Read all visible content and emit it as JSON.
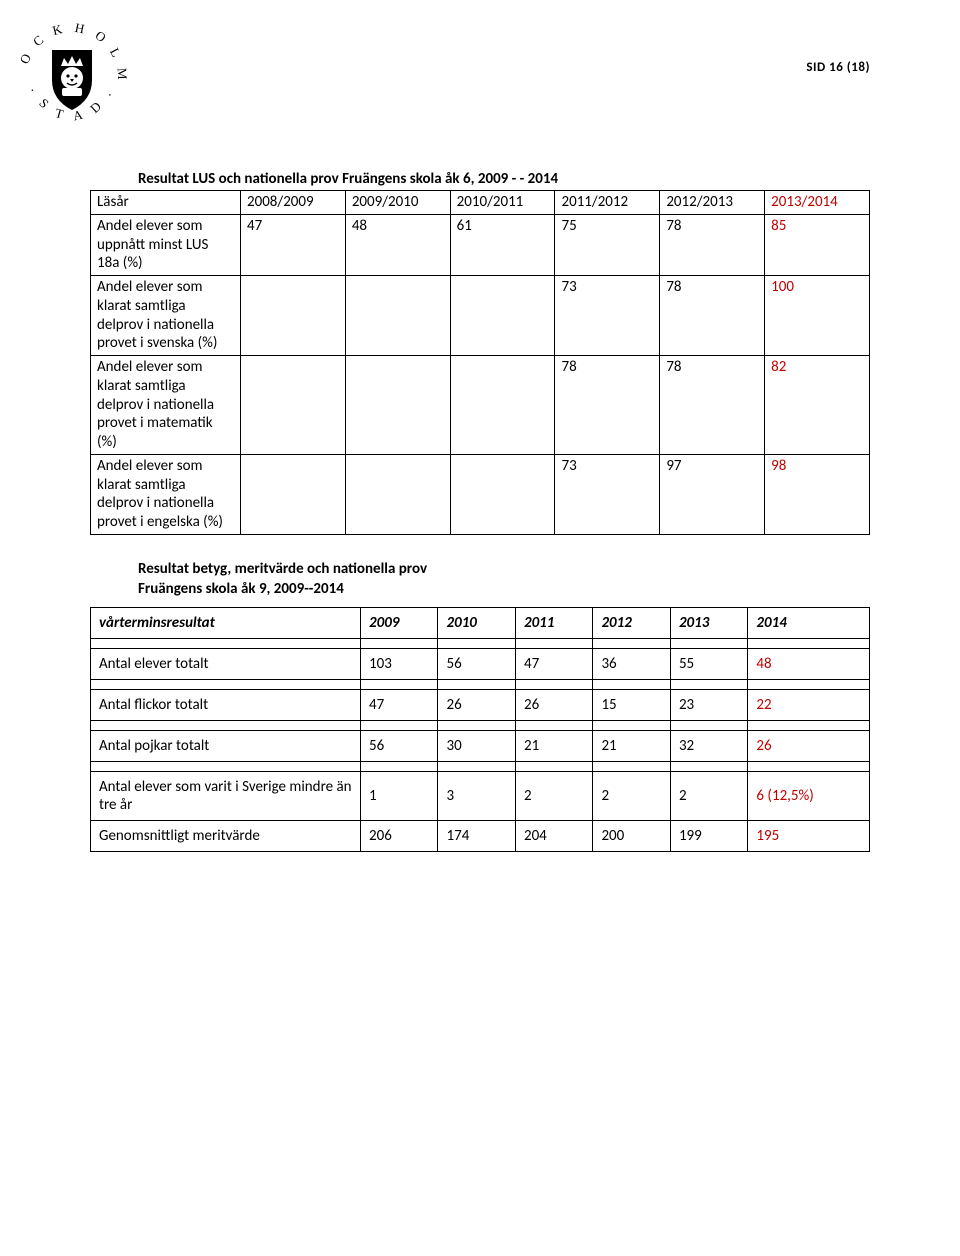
{
  "page_number": "SID 16 (18)",
  "logo": {
    "ring_text_top": "S T O C K H O L M S",
    "ring_text_bottom": ". S T A D .",
    "alt": "Stockholms stad"
  },
  "table1": {
    "title": "Resultat LUS och nationella prov Fruängens skola åk 6, 2009 - - 2014",
    "header_row_label": "Läsår",
    "years": [
      "2008/2009",
      "2009/2010",
      "2010/2011",
      "2011/2012",
      "2012/2013"
    ],
    "year_last": "2013/2014",
    "rows": [
      {
        "label": "Andel elever som uppnått minst  LUS 18a (%)",
        "cells": [
          "47",
          "48",
          "61",
          "75",
          "78"
        ],
        "last": "85"
      },
      {
        "label": "Andel elever som klarat samtliga delprov i nationella provet i svenska (%)",
        "cells": [
          "",
          "",
          "",
          "73",
          "78"
        ],
        "last": "100"
      },
      {
        "label": "Andel elever som klarat samtliga delprov i nationella provet i matematik (%)",
        "cells": [
          "",
          "",
          "",
          "78",
          "78"
        ],
        "last": "82"
      },
      {
        "label": "Andel elever som klarat samtliga delprov i nationella provet i engelska (%)",
        "cells": [
          "",
          "",
          "",
          "73",
          "97"
        ],
        "last": "98"
      }
    ]
  },
  "section2": {
    "title_line1": "Resultat betyg, meritvärde och nationella prov",
    "title_line2": "Fruängens skola åk 9, 2009--2014"
  },
  "table2": {
    "header_label": "vårterminsresultat",
    "years": [
      "2009",
      "2010",
      "2011",
      "2012",
      "2013"
    ],
    "year_last": "2014",
    "rows": [
      {
        "label": "Antal elever totalt",
        "cells": [
          "103",
          "56",
          "47",
          "36",
          "55"
        ],
        "last": "48",
        "last_red": true
      },
      {
        "label": "Antal flickor totalt",
        "cells": [
          "47",
          "26",
          "26",
          "15",
          "23"
        ],
        "last": "22",
        "last_red": true
      },
      {
        "label": "Antal pojkar totalt",
        "cells": [
          "56",
          "30",
          "21",
          "21",
          "32"
        ],
        "last": "26",
        "last_red": true
      },
      {
        "label": "Antal elever som varit i Sverige mindre än tre år",
        "cells": [
          "1",
          "3",
          "2",
          "2",
          "2"
        ],
        "last": "6 (12,5%)",
        "last_red": true
      },
      {
        "label": "Genomsnittligt meritvärde",
        "cells": [
          "206",
          "174",
          "204",
          "200",
          "199"
        ],
        "last": "195",
        "last_red": true
      }
    ]
  }
}
